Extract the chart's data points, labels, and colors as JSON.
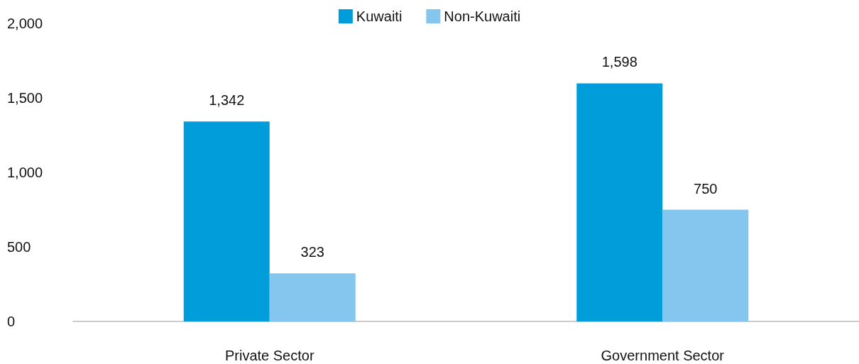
{
  "chart_data": {
    "type": "bar",
    "categories": [
      "Private Sector",
      "Government Sector"
    ],
    "series": [
      {
        "name": "Kuwaiti",
        "color": "#009dda",
        "values": [
          1342,
          1598
        ],
        "value_labels": [
          "1,342",
          "1,598"
        ]
      },
      {
        "name": "Non-Kuwaiti",
        "color": "#85c6ee",
        "values": [
          323,
          750
        ],
        "value_labels": [
          "323",
          "750"
        ]
      }
    ],
    "ylim": [
      0,
      2000
    ],
    "yticks": [
      0,
      500,
      {
        "value": 1000,
        "label": "1,000"
      },
      {
        "value": 1500,
        "label": "1,500"
      },
      {
        "value": 2000,
        "label": "2,000"
      }
    ],
    "grid": false,
    "legend": "top"
  }
}
